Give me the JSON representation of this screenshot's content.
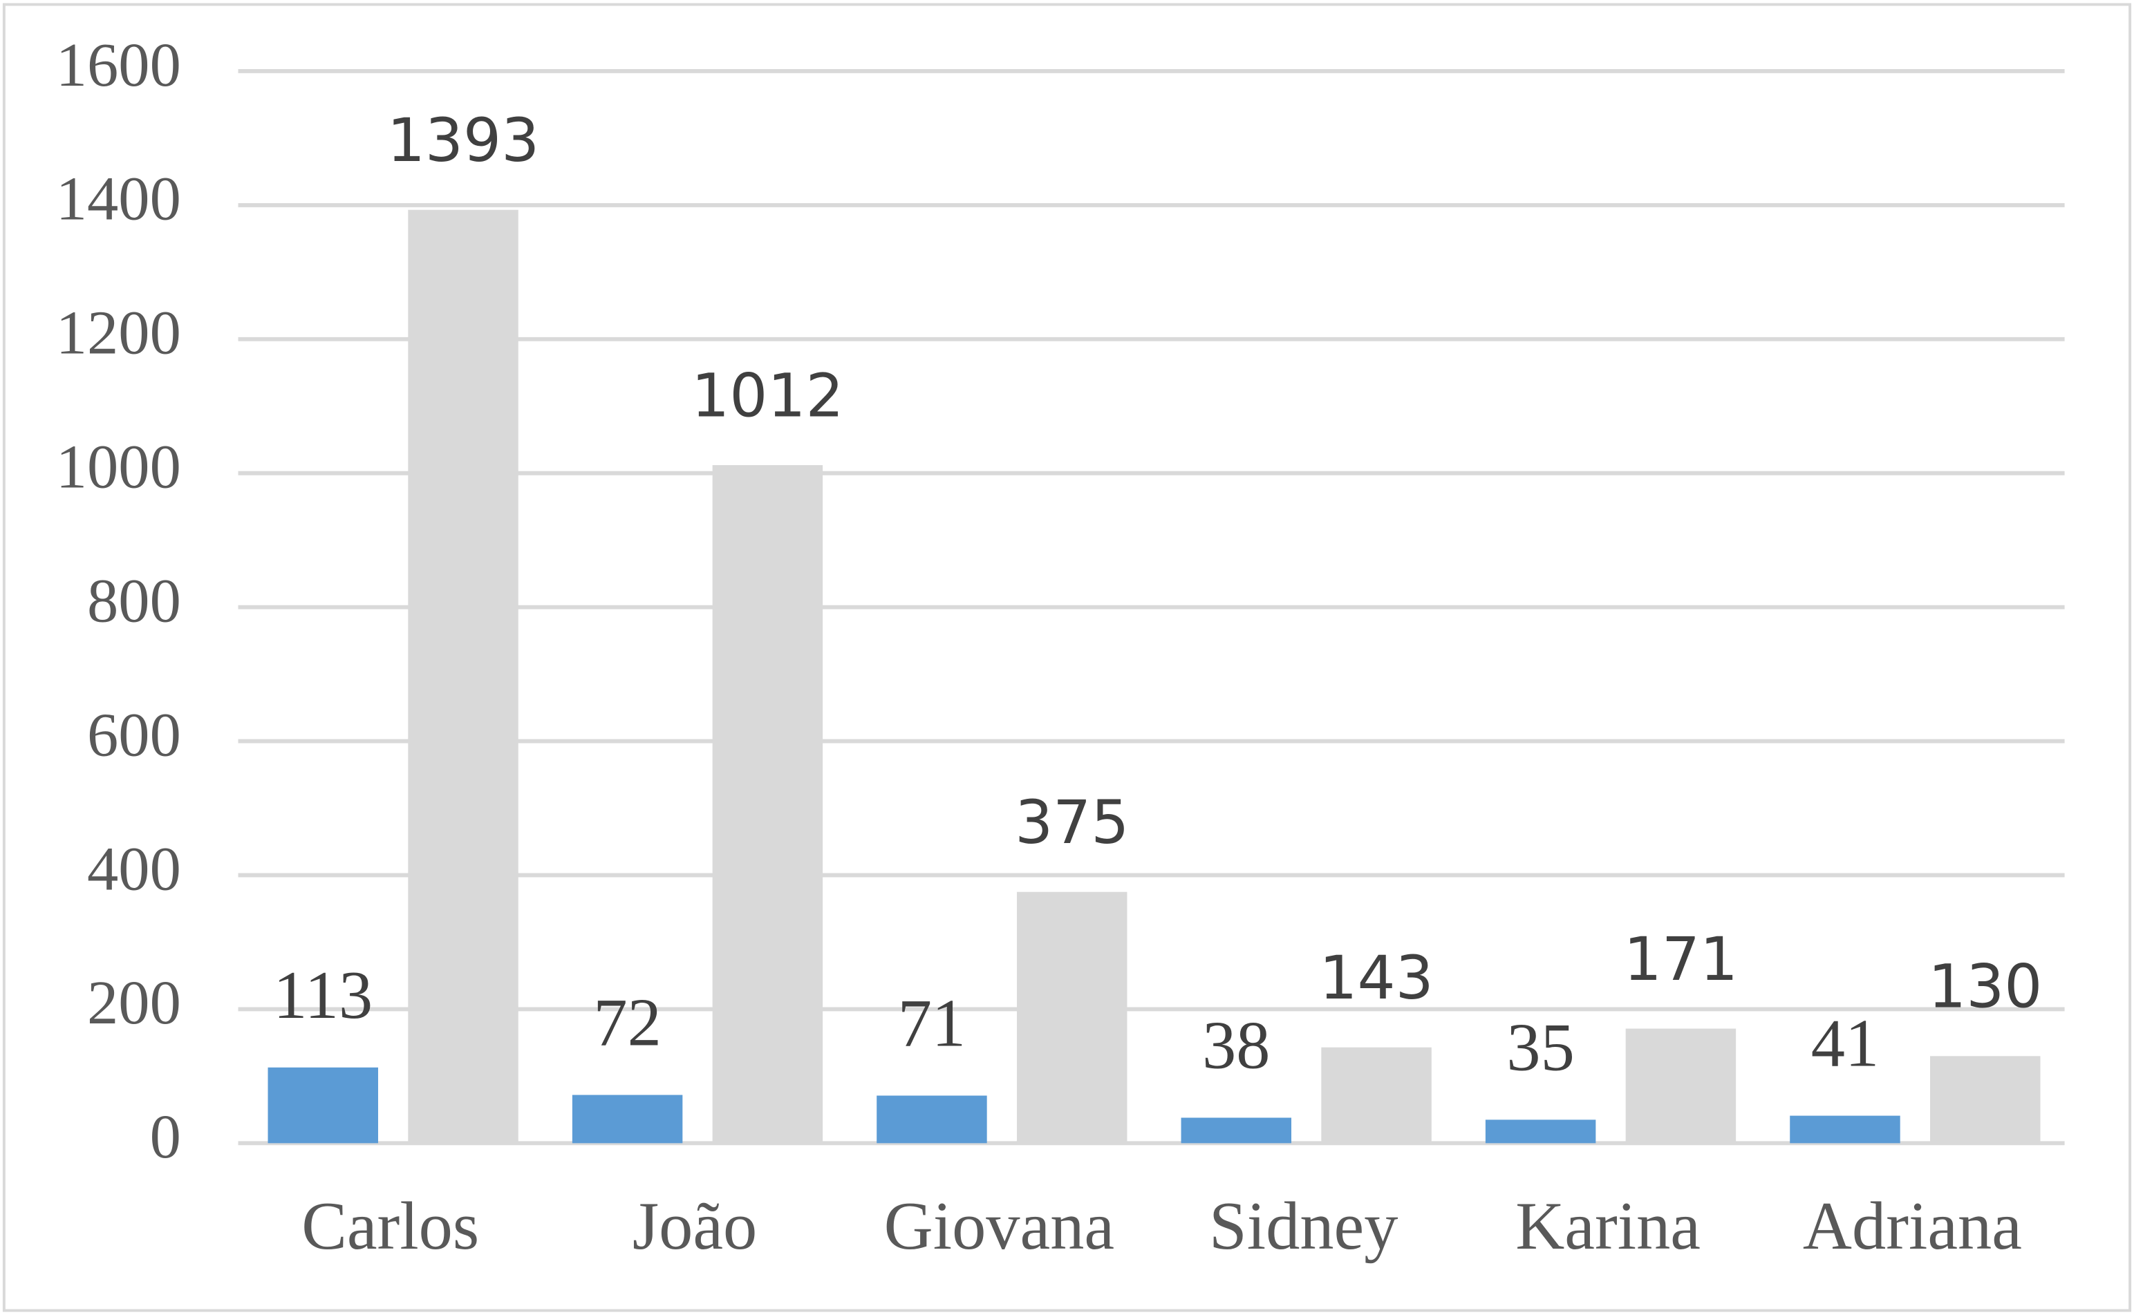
{
  "chart_data": {
    "type": "bar",
    "categories": [
      "Carlos",
      "João",
      "Giovana",
      "Sidney",
      "Karina",
      "Adriana"
    ],
    "series": [
      {
        "color": "#5b9bd5",
        "values": [
          113,
          72,
          71,
          38,
          35,
          41
        ]
      },
      {
        "color": "#d9d9d9",
        "values": [
          1393,
          1012,
          375,
          143,
          171,
          130
        ]
      }
    ],
    "ylim": [
      0,
      1600
    ],
    "yticks": [
      0,
      200,
      400,
      600,
      800,
      1000,
      1200,
      1400,
      1600
    ],
    "grid": true
  }
}
